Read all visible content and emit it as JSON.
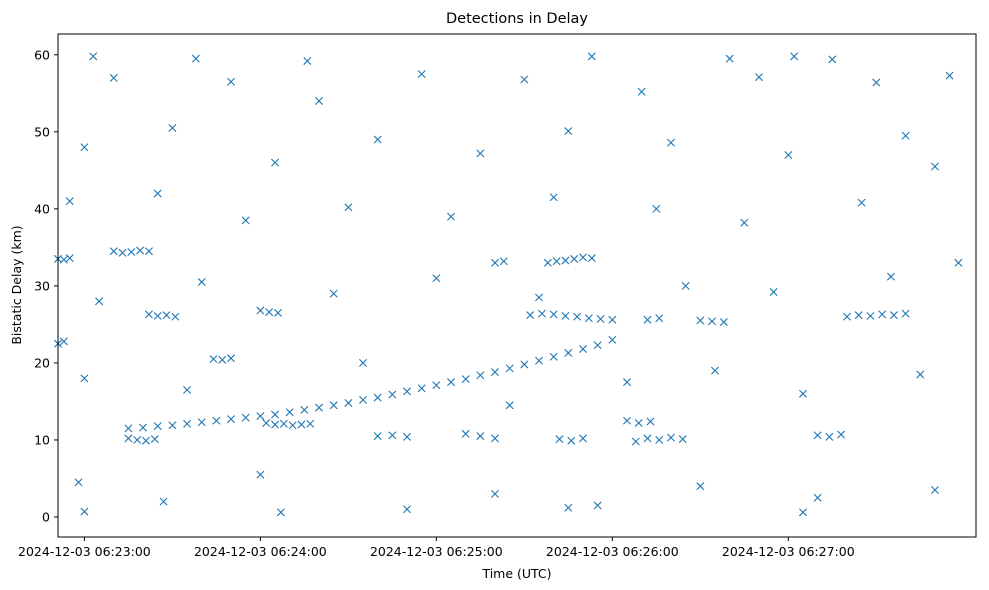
{
  "chart_data": {
    "type": "scatter",
    "title": "Detections in Delay",
    "xlabel": "Time (UTC)",
    "ylabel": "Bistatic Delay (km)",
    "marker": "x",
    "color": "#1f77b4",
    "grid": false,
    "x_is_time": true,
    "xlim": [
      "2024-12-03 06:22:51",
      "2024-12-03 06:28:04"
    ],
    "ylim": [
      -2.6,
      62.7
    ],
    "x_ticks": [
      "2024-12-03 06:23:00",
      "2024-12-03 06:24:00",
      "2024-12-03 06:25:00",
      "2024-12-03 06:26:00",
      "2024-12-03 06:27:00"
    ],
    "y_ticks": [
      0,
      10,
      20,
      30,
      40,
      50,
      60
    ],
    "series": [
      {
        "role": "target-track",
        "points": [
          [
            "2024-12-03 06:23:15",
            11.5
          ],
          [
            "2024-12-03 06:23:20",
            11.6
          ],
          [
            "2024-12-03 06:23:25",
            11.8
          ],
          [
            "2024-12-03 06:23:30",
            11.9
          ],
          [
            "2024-12-03 06:23:35",
            12.1
          ],
          [
            "2024-12-03 06:23:40",
            12.3
          ],
          [
            "2024-12-03 06:23:45",
            12.5
          ],
          [
            "2024-12-03 06:23:50",
            12.7
          ],
          [
            "2024-12-03 06:23:55",
            12.9
          ],
          [
            "2024-12-03 06:24:00",
            13.1
          ],
          [
            "2024-12-03 06:24:05",
            13.3
          ],
          [
            "2024-12-03 06:24:10",
            13.6
          ],
          [
            "2024-12-03 06:24:15",
            13.9
          ],
          [
            "2024-12-03 06:24:20",
            14.2
          ],
          [
            "2024-12-03 06:24:25",
            14.5
          ],
          [
            "2024-12-03 06:24:30",
            14.8
          ],
          [
            "2024-12-03 06:24:35",
            15.2
          ],
          [
            "2024-12-03 06:24:40",
            15.5
          ],
          [
            "2024-12-03 06:24:45",
            15.9
          ],
          [
            "2024-12-03 06:24:50",
            16.3
          ],
          [
            "2024-12-03 06:24:55",
            16.7
          ],
          [
            "2024-12-03 06:25:00",
            17.1
          ],
          [
            "2024-12-03 06:25:05",
            17.5
          ],
          [
            "2024-12-03 06:25:10",
            17.9
          ],
          [
            "2024-12-03 06:25:15",
            18.4
          ],
          [
            "2024-12-03 06:25:20",
            18.8
          ],
          [
            "2024-12-03 06:25:25",
            19.3
          ],
          [
            "2024-12-03 06:25:30",
            19.8
          ],
          [
            "2024-12-03 06:25:35",
            20.3
          ],
          [
            "2024-12-03 06:25:40",
            20.8
          ],
          [
            "2024-12-03 06:25:45",
            21.3
          ],
          [
            "2024-12-03 06:25:50",
            21.8
          ],
          [
            "2024-12-03 06:25:55",
            22.3
          ],
          [
            "2024-12-03 06:26:00",
            23.0
          ]
        ]
      },
      {
        "role": "clutter-segments",
        "points": [
          [
            "2024-12-03 06:22:51",
            33.5
          ],
          [
            "2024-12-03 06:22:53",
            33.4
          ],
          [
            "2024-12-03 06:22:55",
            33.6
          ],
          [
            "2024-12-03 06:22:51",
            22.5
          ],
          [
            "2024-12-03 06:22:53",
            22.8
          ],
          [
            "2024-12-03 06:23:10",
            34.5
          ],
          [
            "2024-12-03 06:23:13",
            34.3
          ],
          [
            "2024-12-03 06:23:16",
            34.4
          ],
          [
            "2024-12-03 06:23:19",
            34.6
          ],
          [
            "2024-12-03 06:23:22",
            34.5
          ],
          [
            "2024-12-03 06:23:22",
            26.3
          ],
          [
            "2024-12-03 06:23:25",
            26.1
          ],
          [
            "2024-12-03 06:23:28",
            26.2
          ],
          [
            "2024-12-03 06:23:31",
            26.0
          ],
          [
            "2024-12-03 06:23:15",
            10.2
          ],
          [
            "2024-12-03 06:23:18",
            10.0
          ],
          [
            "2024-12-03 06:23:21",
            9.9
          ],
          [
            "2024-12-03 06:23:24",
            10.1
          ],
          [
            "2024-12-03 06:23:44",
            20.5
          ],
          [
            "2024-12-03 06:23:47",
            20.4
          ],
          [
            "2024-12-03 06:23:50",
            20.6
          ],
          [
            "2024-12-03 06:24:00",
            26.8
          ],
          [
            "2024-12-03 06:24:03",
            26.6
          ],
          [
            "2024-12-03 06:24:06",
            26.5
          ],
          [
            "2024-12-03 06:24:02",
            12.2
          ],
          [
            "2024-12-03 06:24:05",
            12.0
          ],
          [
            "2024-12-03 06:24:08",
            12.1
          ],
          [
            "2024-12-03 06:24:11",
            11.9
          ],
          [
            "2024-12-03 06:24:14",
            12.0
          ],
          [
            "2024-12-03 06:24:17",
            12.1
          ],
          [
            "2024-12-03 06:24:40",
            10.5
          ],
          [
            "2024-12-03 06:24:45",
            10.6
          ],
          [
            "2024-12-03 06:24:50",
            10.4
          ],
          [
            "2024-12-03 06:25:10",
            10.8
          ],
          [
            "2024-12-03 06:25:15",
            10.5
          ],
          [
            "2024-12-03 06:25:20",
            10.2
          ],
          [
            "2024-12-03 06:25:20",
            33.0
          ],
          [
            "2024-12-03 06:25:23",
            33.2
          ],
          [
            "2024-12-03 06:25:32",
            26.2
          ],
          [
            "2024-12-03 06:25:36",
            26.4
          ],
          [
            "2024-12-03 06:25:40",
            26.3
          ],
          [
            "2024-12-03 06:25:44",
            26.1
          ],
          [
            "2024-12-03 06:25:48",
            26.0
          ],
          [
            "2024-12-03 06:25:52",
            25.8
          ],
          [
            "2024-12-03 06:25:56",
            25.7
          ],
          [
            "2024-12-03 06:26:00",
            25.6
          ],
          [
            "2024-12-03 06:25:38",
            33.0
          ],
          [
            "2024-12-03 06:25:41",
            33.2
          ],
          [
            "2024-12-03 06:25:44",
            33.3
          ],
          [
            "2024-12-03 06:25:47",
            33.5
          ],
          [
            "2024-12-03 06:25:50",
            33.7
          ],
          [
            "2024-12-03 06:25:53",
            33.6
          ],
          [
            "2024-12-03 06:25:42",
            10.1
          ],
          [
            "2024-12-03 06:25:46",
            9.9
          ],
          [
            "2024-12-03 06:25:50",
            10.2
          ],
          [
            "2024-12-03 06:26:05",
            12.5
          ],
          [
            "2024-12-03 06:26:09",
            12.2
          ],
          [
            "2024-12-03 06:26:13",
            12.4
          ],
          [
            "2024-12-03 06:26:08",
            9.8
          ],
          [
            "2024-12-03 06:26:12",
            10.2
          ],
          [
            "2024-12-03 06:26:16",
            10.0
          ],
          [
            "2024-12-03 06:26:20",
            10.3
          ],
          [
            "2024-12-03 06:26:24",
            10.1
          ],
          [
            "2024-12-03 06:26:12",
            25.6
          ],
          [
            "2024-12-03 06:26:16",
            25.8
          ],
          [
            "2024-12-03 06:26:30",
            25.5
          ],
          [
            "2024-12-03 06:26:34",
            25.4
          ],
          [
            "2024-12-03 06:26:38",
            25.3
          ],
          [
            "2024-12-03 06:27:20",
            26.0
          ],
          [
            "2024-12-03 06:27:24",
            26.2
          ],
          [
            "2024-12-03 06:27:28",
            26.1
          ],
          [
            "2024-12-03 06:27:32",
            26.3
          ],
          [
            "2024-12-03 06:27:36",
            26.2
          ],
          [
            "2024-12-03 06:27:40",
            26.4
          ],
          [
            "2024-12-03 06:27:10",
            10.6
          ],
          [
            "2024-12-03 06:27:14",
            10.4
          ],
          [
            "2024-12-03 06:27:18",
            10.7
          ]
        ]
      },
      {
        "role": "background-detections",
        "points": [
          [
            "2024-12-03 06:23:03",
            59.8
          ],
          [
            "2024-12-03 06:23:38",
            59.5
          ],
          [
            "2024-12-03 06:24:16",
            59.2
          ],
          [
            "2024-12-03 06:25:53",
            59.8
          ],
          [
            "2024-12-03 06:26:40",
            59.5
          ],
          [
            "2024-12-03 06:27:02",
            59.8
          ],
          [
            "2024-12-03 06:27:15",
            59.4
          ],
          [
            "2024-12-03 06:23:10",
            57.0
          ],
          [
            "2024-12-03 06:23:50",
            56.5
          ],
          [
            "2024-12-03 06:24:20",
            54.0
          ],
          [
            "2024-12-03 06:24:55",
            57.5
          ],
          [
            "2024-12-03 06:25:30",
            56.8
          ],
          [
            "2024-12-03 06:26:10",
            55.2
          ],
          [
            "2024-12-03 06:26:50",
            57.1
          ],
          [
            "2024-12-03 06:27:30",
            56.4
          ],
          [
            "2024-12-03 06:23:00",
            48.0
          ],
          [
            "2024-12-03 06:23:30",
            50.5
          ],
          [
            "2024-12-03 06:24:05",
            46.0
          ],
          [
            "2024-12-03 06:24:40",
            49.0
          ],
          [
            "2024-12-03 06:25:15",
            47.2
          ],
          [
            "2024-12-03 06:25:45",
            50.1
          ],
          [
            "2024-12-03 06:26:20",
            48.6
          ],
          [
            "2024-12-03 06:27:00",
            47.0
          ],
          [
            "2024-12-03 06:27:40",
            49.5
          ],
          [
            "2024-12-03 06:22:55",
            41.0
          ],
          [
            "2024-12-03 06:23:25",
            42.0
          ],
          [
            "2024-12-03 06:23:55",
            38.5
          ],
          [
            "2024-12-03 06:24:30",
            40.2
          ],
          [
            "2024-12-03 06:25:05",
            39.0
          ],
          [
            "2024-12-03 06:25:40",
            41.5
          ],
          [
            "2024-12-03 06:26:15",
            40.0
          ],
          [
            "2024-12-03 06:26:45",
            38.2
          ],
          [
            "2024-12-03 06:27:25",
            40.8
          ],
          [
            "2024-12-03 06:23:05",
            28.0
          ],
          [
            "2024-12-03 06:23:40",
            30.5
          ],
          [
            "2024-12-03 06:24:25",
            29.0
          ],
          [
            "2024-12-03 06:25:00",
            31.0
          ],
          [
            "2024-12-03 06:25:35",
            28.5
          ],
          [
            "2024-12-03 06:26:25",
            30.0
          ],
          [
            "2024-12-03 06:26:55",
            29.2
          ],
          [
            "2024-12-03 06:27:35",
            31.2
          ],
          [
            "2024-12-03 06:23:00",
            18.0
          ],
          [
            "2024-12-03 06:23:35",
            16.5
          ],
          [
            "2024-12-03 06:24:35",
            20.0
          ],
          [
            "2024-12-03 06:25:25",
            14.5
          ],
          [
            "2024-12-03 06:26:05",
            17.5
          ],
          [
            "2024-12-03 06:26:35",
            19.0
          ],
          [
            "2024-12-03 06:27:05",
            16.0
          ],
          [
            "2024-12-03 06:27:45",
            18.5
          ],
          [
            "2024-12-03 06:22:58",
            4.5
          ],
          [
            "2024-12-03 06:23:27",
            2.0
          ],
          [
            "2024-12-03 06:24:00",
            5.5
          ],
          [
            "2024-12-03 06:24:50",
            1.0
          ],
          [
            "2024-12-03 06:25:20",
            3.0
          ],
          [
            "2024-12-03 06:25:55",
            1.5
          ],
          [
            "2024-12-03 06:26:30",
            4.0
          ],
          [
            "2024-12-03 06:27:10",
            2.5
          ],
          [
            "2024-12-03 06:27:50",
            3.5
          ],
          [
            "2024-12-03 06:23:00",
            0.7
          ],
          [
            "2024-12-03 06:24:07",
            0.6
          ],
          [
            "2024-12-03 06:25:45",
            1.2
          ],
          [
            "2024-12-03 06:27:05",
            0.6
          ],
          [
            "2024-12-03 06:27:55",
            57.3
          ],
          [
            "2024-12-03 06:27:50",
            45.5
          ],
          [
            "2024-12-03 06:27:58",
            33.0
          ]
        ]
      }
    ]
  }
}
